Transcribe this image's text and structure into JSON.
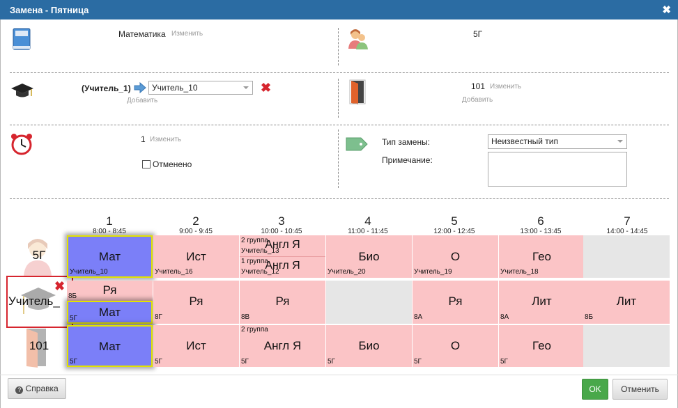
{
  "dialog": {
    "title": "Замена - Пятница",
    "close_glyph": "✖"
  },
  "subject": {
    "value": "Математика",
    "change": "Изменить"
  },
  "class": {
    "value": "5Г"
  },
  "teacher": {
    "original": "(Учитель_1)",
    "selected": "Учитель_10",
    "add": "Добавить"
  },
  "room": {
    "value": "101",
    "change": "Изменить",
    "add": "Добавить"
  },
  "lesson": {
    "value": "1",
    "change": "Изменить",
    "cancelled_label": "Отменено"
  },
  "replacement": {
    "type_label": "Тип замены:",
    "type_value": "Неизвестный тип",
    "note_label": "Примечание:"
  },
  "timetable": {
    "periods": [
      {
        "num": "1",
        "time": "8:00 - 8:45"
      },
      {
        "num": "2",
        "time": "9:00 - 9:45"
      },
      {
        "num": "3",
        "time": "10:00 - 10:45"
      },
      {
        "num": "4",
        "time": "11:00 - 11:45"
      },
      {
        "num": "5",
        "time": "12:00 - 12:45"
      },
      {
        "num": "6",
        "time": "13:00 - 13:45"
      },
      {
        "num": "7",
        "time": "14:00 - 14:45"
      }
    ],
    "row_labels": {
      "class": "5Г",
      "teacher": "Учитель_",
      "room": "101"
    },
    "class_row": [
      {
        "subj": "Мат",
        "teacher": "Учитель_10"
      },
      {
        "subj": "Ист",
        "teacher": "Учитель_16"
      },
      {
        "g1": "2 группа",
        "t1": "Учитель_13",
        "s1": "Англ Я",
        "g2": "1 группа",
        "t2": "Учитель_12",
        "s2": "Англ Я"
      },
      {
        "subj": "Био",
        "teacher": "Учитель_20"
      },
      {
        "subj": "О",
        "teacher": "Учитель_19"
      },
      {
        "subj": "Гео",
        "teacher": "Учитель_18"
      }
    ],
    "teacher_row": [
      {
        "top_subj": "Ря",
        "top_class": "8Б",
        "bottom_subj": "Мат",
        "bottom_class": "5Г"
      },
      {
        "subj": "Ря",
        "cls": "8Г"
      },
      {
        "subj": "Ря",
        "cls": "8В"
      },
      {
        "subj": "Ря",
        "cls": "8А"
      },
      {
        "subj": "Лит",
        "cls": "8А"
      },
      {
        "subj": "Лит",
        "cls": "8Б"
      }
    ],
    "room_row": [
      {
        "subj": "Мат",
        "cls": "5Г"
      },
      {
        "subj": "Ист",
        "cls": "5Г"
      },
      {
        "grp": "2 группа",
        "subj": "Англ Я",
        "cls": "5Г"
      },
      {
        "subj": "Био",
        "cls": "5Г"
      },
      {
        "subj": "О",
        "cls": "5Г"
      },
      {
        "subj": "Гео",
        "cls": "5Г"
      }
    ]
  },
  "footer": {
    "help": "Справка",
    "ok": "OK",
    "cancel": "Отменить"
  },
  "colors": {
    "titlebar": "#2b6ca3",
    "lesson_pink": "#fbc4c6",
    "current_blue": "#7b7ff8",
    "empty_grey": "#e6e6e6",
    "ok_green": "#49a84a"
  }
}
